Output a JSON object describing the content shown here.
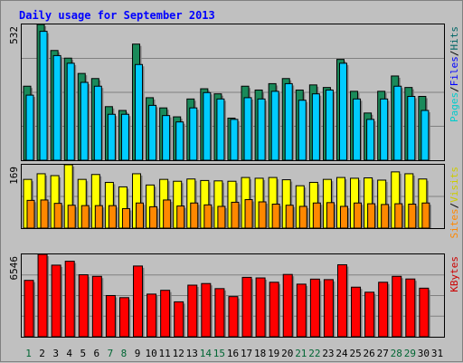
{
  "chart_data": {
    "type": "bar",
    "title": "Daily usage for September 2013",
    "categories": [
      "1",
      "2",
      "3",
      "4",
      "5",
      "6",
      "7",
      "8",
      "9",
      "10",
      "11",
      "12",
      "13",
      "14",
      "15",
      "16",
      "17",
      "18",
      "19",
      "20",
      "21",
      "22",
      "23",
      "24",
      "25",
      "26",
      "27",
      "28",
      "29",
      "30",
      "31"
    ],
    "weekend_days": [
      "1",
      "7",
      "8",
      "14",
      "15",
      "21",
      "22",
      "28",
      "29"
    ],
    "colors": {
      "background": "#c0c0c0",
      "plot_background": "#c0c0c0",
      "title": "#0000ff",
      "hits": "#006666",
      "hits_bar": "#1a8a5a",
      "files": "#0000ff",
      "files_bar": "#00ccff",
      "pages": "#00cccc",
      "visits": "#ffff00",
      "visits_label": "#cccc00",
      "sites": "#ff8800",
      "kbytes": "#ff0000",
      "kbytes_label": "#cc0000",
      "weekday_label": "#000000",
      "weekend_label": "#006633"
    },
    "panels": [
      {
        "name": "hits-files-pages",
        "max_label": "532",
        "legend": [
          "Pages",
          "/",
          "Files",
          "/",
          "Hits"
        ],
        "ylim": [
          0,
          532
        ],
        "series": [
          {
            "name": "Hits",
            "values": [
              290,
              532,
              430,
              400,
              340,
              320,
              210,
              195,
              455,
              245,
              205,
              170,
              240,
              280,
              260,
              165,
              290,
              275,
              300,
              320,
              275,
              295,
              285,
              395,
              270,
              185,
              270,
              330,
              285,
              250,
              0
            ]
          },
          {
            "name": "Files",
            "values": [
              255,
              505,
              410,
              380,
              305,
              290,
              180,
              180,
              375,
              215,
              175,
              150,
              205,
              265,
              240,
              160,
              245,
              240,
              270,
              300,
              235,
              260,
              275,
              380,
              240,
              160,
              240,
              290,
              250,
              195,
              0
            ]
          },
          {
            "name": "Pages",
            "values": [
              0,
              0,
              0,
              0,
              0,
              0,
              0,
              0,
              0,
              0,
              0,
              0,
              0,
              0,
              0,
              0,
              0,
              0,
              0,
              0,
              0,
              0,
              0,
              0,
              0,
              0,
              0,
              0,
              0,
              0,
              0
            ]
          }
        ]
      },
      {
        "name": "visits-sites",
        "max_label": "169",
        "legend": [
          "Sites",
          "/",
          "Visits"
        ],
        "ylim": [
          0,
          169
        ],
        "series": [
          {
            "name": "Visits",
            "values": [
              130,
              145,
              140,
              169,
              130,
              143,
              122,
              110,
              145,
              115,
              130,
              125,
              131,
              127,
              126,
              125,
              135,
              133,
              135,
              129,
              113,
              122,
              130,
              135,
              133,
              134,
              128,
              150,
              145,
              131,
              0
            ]
          },
          {
            "name": "Sites",
            "values": [
              74,
              75,
              66,
              61,
              60,
              60,
              60,
              52,
              67,
              57,
              75,
              59,
              67,
              62,
              58,
              69,
              76,
              70,
              64,
              61,
              58,
              67,
              68,
              58,
              67,
              65,
              63,
              65,
              64,
              67,
              0
            ]
          }
        ]
      },
      {
        "name": "kbytes",
        "max_label": "6546",
        "legend": [
          "KBytes"
        ],
        "ylim": [
          0,
          6546
        ],
        "series": [
          {
            "name": "KBytes",
            "values": [
              4480,
              6546,
              5690,
              6000,
              4926,
              4800,
              3275,
              3108,
              5620,
              3390,
              3690,
              2775,
              4100,
              4228,
              3825,
              3190,
              4720,
              4674,
              4330,
              4950,
              4180,
              4580,
              4540,
              5720,
              3940,
              3540,
              4330,
              4800,
              4590,
              3860,
              0
            ]
          }
        ]
      }
    ]
  }
}
